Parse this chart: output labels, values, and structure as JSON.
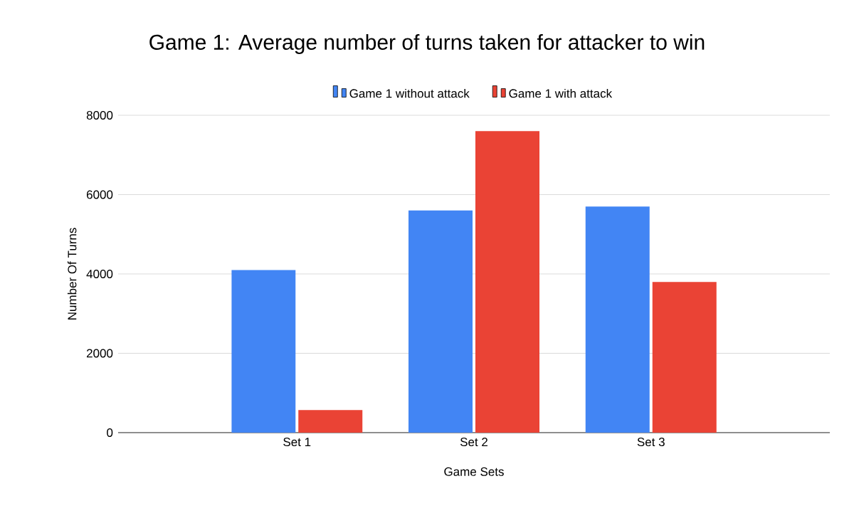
{
  "chart_data": {
    "type": "bar",
    "title": "Game 1: Average number of turns taken for attacker to win",
    "xlabel": "Game Sets",
    "ylabel": "Number Of Turns",
    "categories": [
      "Set 1",
      "Set 2",
      "Set 3"
    ],
    "series": [
      {
        "name": "Game 1 without attack",
        "color": "#4285f4",
        "values": [
          4100,
          5600,
          5700
        ]
      },
      {
        "name": "Game 1 with attack",
        "color": "#ea4335",
        "values": [
          570,
          7600,
          3800
        ]
      }
    ],
    "ylim": [
      0,
      8000
    ],
    "yticks": [
      0,
      2000,
      4000,
      6000,
      8000
    ],
    "grid": "y",
    "legend": "top"
  }
}
